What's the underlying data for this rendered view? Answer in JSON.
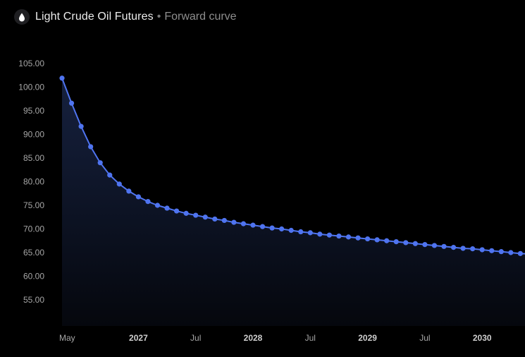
{
  "header": {
    "icon": "oil-drop-icon",
    "title": "Light Crude Oil Futures",
    "separator": "•",
    "subtitle": "Forward curve"
  },
  "colors": {
    "background": "#000000",
    "line": "#4f74f0",
    "point": "#4f74f0",
    "area_top": "#16213f",
    "area_bottom": "#05070d",
    "tick_text": "#a6a6a6",
    "tick_text_bold": "#cfcfcf"
  },
  "chart_data": {
    "type": "area",
    "title": "",
    "xlabel": "",
    "ylabel": "",
    "grid": false,
    "legend": "none",
    "ylim": [
      50,
      106
    ],
    "yticks": [
      "105.00",
      "100.00",
      "95.00",
      "90.00",
      "85.00",
      "80.00",
      "75.00",
      "70.00",
      "65.00",
      "60.00",
      "55.00"
    ],
    "xticks": [
      {
        "label": "May",
        "month": "2026-05",
        "bold": false
      },
      {
        "label": "2027",
        "month": "2027-01",
        "bold": true
      },
      {
        "label": "Jul",
        "month": "2027-07",
        "bold": false
      },
      {
        "label": "2028",
        "month": "2028-01",
        "bold": true
      },
      {
        "label": "Jul",
        "month": "2028-07",
        "bold": false
      },
      {
        "label": "2029",
        "month": "2029-01",
        "bold": true
      },
      {
        "label": "Jul",
        "month": "2029-07",
        "bold": false
      },
      {
        "label": "2030",
        "month": "2030-01",
        "bold": true
      }
    ],
    "series": [
      {
        "x": [
          "2026-05",
          "2026-06",
          "2026-07",
          "2026-08",
          "2026-09",
          "2026-10",
          "2026-11",
          "2026-12",
          "2027-01",
          "2027-02",
          "2027-03",
          "2027-04",
          "2027-05",
          "2027-06",
          "2027-07",
          "2027-08",
          "2027-09",
          "2027-10",
          "2027-11",
          "2027-12",
          "2028-01",
          "2028-02",
          "2028-03",
          "2028-04",
          "2028-05",
          "2028-06",
          "2028-07",
          "2028-08",
          "2028-09",
          "2028-10",
          "2028-11",
          "2028-12",
          "2029-01",
          "2029-02",
          "2029-03",
          "2029-04",
          "2029-05",
          "2029-06",
          "2029-07",
          "2029-08",
          "2029-09",
          "2029-10",
          "2029-11",
          "2029-12",
          "2030-01",
          "2030-02",
          "2030-03",
          "2030-04",
          "2030-05",
          "2030-06"
        ],
        "values": [
          101.9,
          96.6,
          91.7,
          87.4,
          84.0,
          81.4,
          79.5,
          78.0,
          76.8,
          75.8,
          75.0,
          74.4,
          73.8,
          73.3,
          72.9,
          72.5,
          72.1,
          71.8,
          71.4,
          71.1,
          70.8,
          70.5,
          70.2,
          70.0,
          69.7,
          69.4,
          69.2,
          68.9,
          68.7,
          68.5,
          68.3,
          68.1,
          67.9,
          67.7,
          67.5,
          67.3,
          67.1,
          66.9,
          66.7,
          66.5,
          66.3,
          66.1,
          65.9,
          65.8,
          65.6,
          65.4,
          65.2,
          65.0,
          64.8,
          64.7
        ]
      }
    ]
  }
}
